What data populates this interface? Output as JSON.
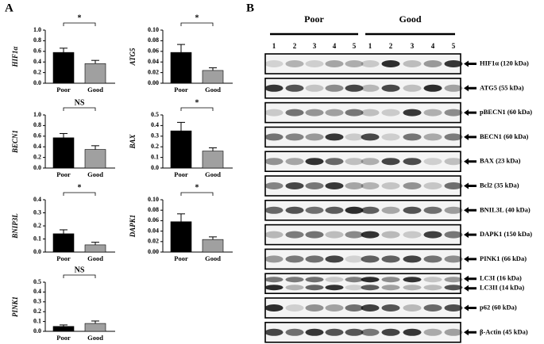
{
  "panel_labels": [
    "A",
    "B"
  ],
  "chart_data": [
    {
      "type": "bar",
      "ylabel": "HIF1α",
      "categories": [
        "Poor",
        "Good"
      ],
      "values": [
        0.58,
        0.37
      ],
      "errors": [
        0.08,
        0.06
      ],
      "colors": [
        "#000000",
        "#a0a0a0"
      ],
      "ylim": [
        0,
        1.0
      ],
      "yticks": [
        {
          "value": 0,
          "label": "0.0"
        },
        0.2,
        0.4,
        0.6,
        0.8,
        {
          "value": 1.0,
          "label": "1.0"
        }
      ],
      "annotation": "*"
    },
    {
      "type": "bar",
      "ylabel": "ATG5",
      "categories": [
        "Poor",
        "Good"
      ],
      "values": [
        0.058,
        0.024
      ],
      "errors": [
        0.015,
        0.005
      ],
      "colors": [
        "#000000",
        "#a0a0a0"
      ],
      "ylim": [
        0,
        0.1
      ],
      "yticks": [
        {
          "value": 0,
          "label": "0.00"
        },
        0.02,
        0.04,
        0.06,
        0.08,
        {
          "value": 0.1,
          "label": "0.10"
        }
      ],
      "annotation": "*"
    },
    {
      "type": "bar",
      "ylabel": "BECN1",
      "categories": [
        "Poor",
        "Good"
      ],
      "values": [
        0.57,
        0.35
      ],
      "errors": [
        0.08,
        0.07
      ],
      "colors": [
        "#000000",
        "#a0a0a0"
      ],
      "ylim": [
        0,
        1.0
      ],
      "yticks": [
        {
          "value": 0,
          "label": "0.0"
        },
        0.2,
        0.4,
        0.6,
        0.8,
        {
          "value": 1.0,
          "label": "1.0"
        }
      ],
      "annotation": "NS"
    },
    {
      "type": "bar",
      "ylabel": "BAX",
      "categories": [
        "Poor",
        "Good"
      ],
      "values": [
        0.35,
        0.16
      ],
      "errors": [
        0.08,
        0.03
      ],
      "colors": [
        "#000000",
        "#a0a0a0"
      ],
      "ylim": [
        0,
        0.5
      ],
      "yticks": [
        {
          "value": 0,
          "label": "0.0"
        },
        0.1,
        0.2,
        0.3,
        0.4,
        0.5
      ],
      "annotation": "*"
    },
    {
      "type": "bar",
      "ylabel": "BNIP3L",
      "categories": [
        "Poor",
        "Good"
      ],
      "values": [
        0.14,
        0.055
      ],
      "errors": [
        0.03,
        0.02
      ],
      "colors": [
        "#000000",
        "#a0a0a0"
      ],
      "ylim": [
        0,
        0.4
      ],
      "yticks": [
        {
          "value": 0,
          "label": "0.0"
        },
        0.1,
        0.2,
        0.3,
        0.4
      ],
      "annotation": "*"
    },
    {
      "type": "bar",
      "ylabel": "DAPK1",
      "categories": [
        "Poor",
        "Good"
      ],
      "values": [
        0.058,
        0.024
      ],
      "errors": [
        0.015,
        0.005
      ],
      "colors": [
        "#000000",
        "#a0a0a0"
      ],
      "ylim": [
        0,
        0.1
      ],
      "yticks": [
        {
          "value": 0,
          "label": "0.00"
        },
        0.02,
        0.04,
        0.06,
        0.08,
        {
          "value": 0.1,
          "label": "0.10"
        }
      ],
      "annotation": "*"
    },
    {
      "type": "bar",
      "ylabel": "PINK1",
      "categories": [
        "Poor",
        "Good"
      ],
      "values": [
        0.05,
        0.08
      ],
      "errors": [
        0.015,
        0.025
      ],
      "colors": [
        "#000000",
        "#a0a0a0"
      ],
      "ylim": [
        0,
        0.5
      ],
      "yticks": [
        {
          "value": 0,
          "label": "0.0"
        },
        0.1,
        0.2,
        0.3,
        0.4,
        0.5
      ],
      "annotation": "NS"
    }
  ],
  "blot": {
    "groups": [
      "Poor",
      "Good"
    ],
    "lanes": [
      "1",
      "2",
      "3",
      "4",
      "5"
    ],
    "rows": [
      [
        "HIF1α (120 kDa)"
      ],
      [
        "ATG5 (55 kDa)"
      ],
      [
        "pBECN1 (60 kDa)"
      ],
      [
        "BECN1 (60 kDa)"
      ],
      [
        "BAX (23 kDa)"
      ],
      [
        "Bcl2 (35 kDa)"
      ],
      [
        "BNIL3L (40 kDa)"
      ],
      [
        "DAPK1 (150 kDa)"
      ],
      [
        "PINK1 (66 kDa)"
      ],
      [
        "LC3I (16 kDa)",
        "LC3II (14 kDa)"
      ],
      [
        "p62 (60 kDa)"
      ],
      [
        "β-Actin (45 kDa)"
      ]
    ]
  }
}
